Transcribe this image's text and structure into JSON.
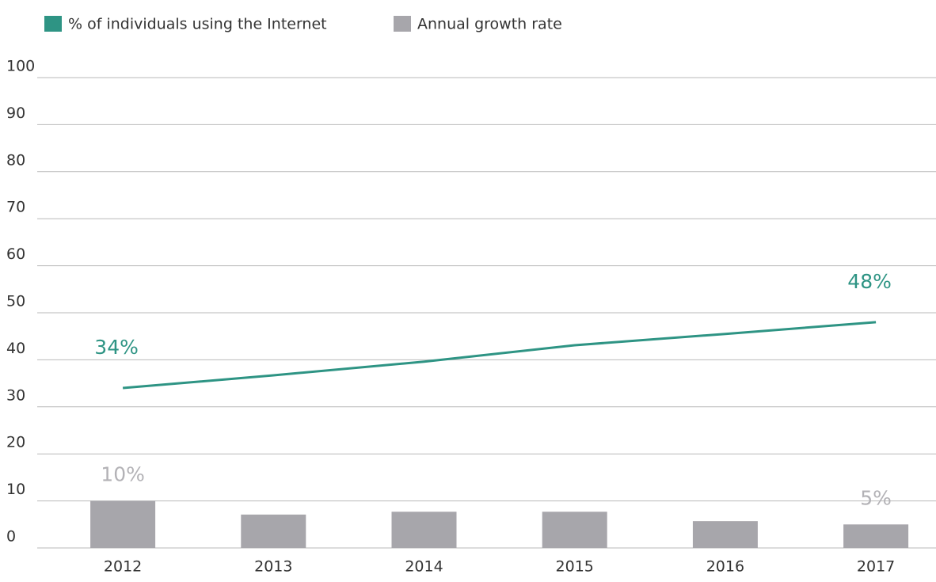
{
  "chart_data": {
    "type": "bar",
    "categories": [
      "2012",
      "2013",
      "2014",
      "2015",
      "2016",
      "2017"
    ],
    "series": [
      {
        "name": "% of individuals using the Internet",
        "type": "line",
        "color": "#2e9484",
        "values": [
          34,
          36.7,
          39.6,
          43.1,
          45.5,
          48
        ],
        "value_labels": [
          "34%",
          null,
          null,
          null,
          null,
          "48%"
        ]
      },
      {
        "name": "Annual growth rate",
        "type": "bar",
        "color": "#a7a6ab",
        "label_color": "#b3b2b6",
        "values": [
          10,
          7.1,
          7.7,
          7.7,
          5.7,
          5
        ],
        "value_labels": [
          "10%",
          null,
          null,
          null,
          null,
          "5%"
        ]
      }
    ],
    "ylim": [
      0,
      100
    ],
    "yticks": [
      0,
      10,
      20,
      30,
      40,
      50,
      60,
      70,
      80,
      90,
      100
    ],
    "grid": true
  }
}
